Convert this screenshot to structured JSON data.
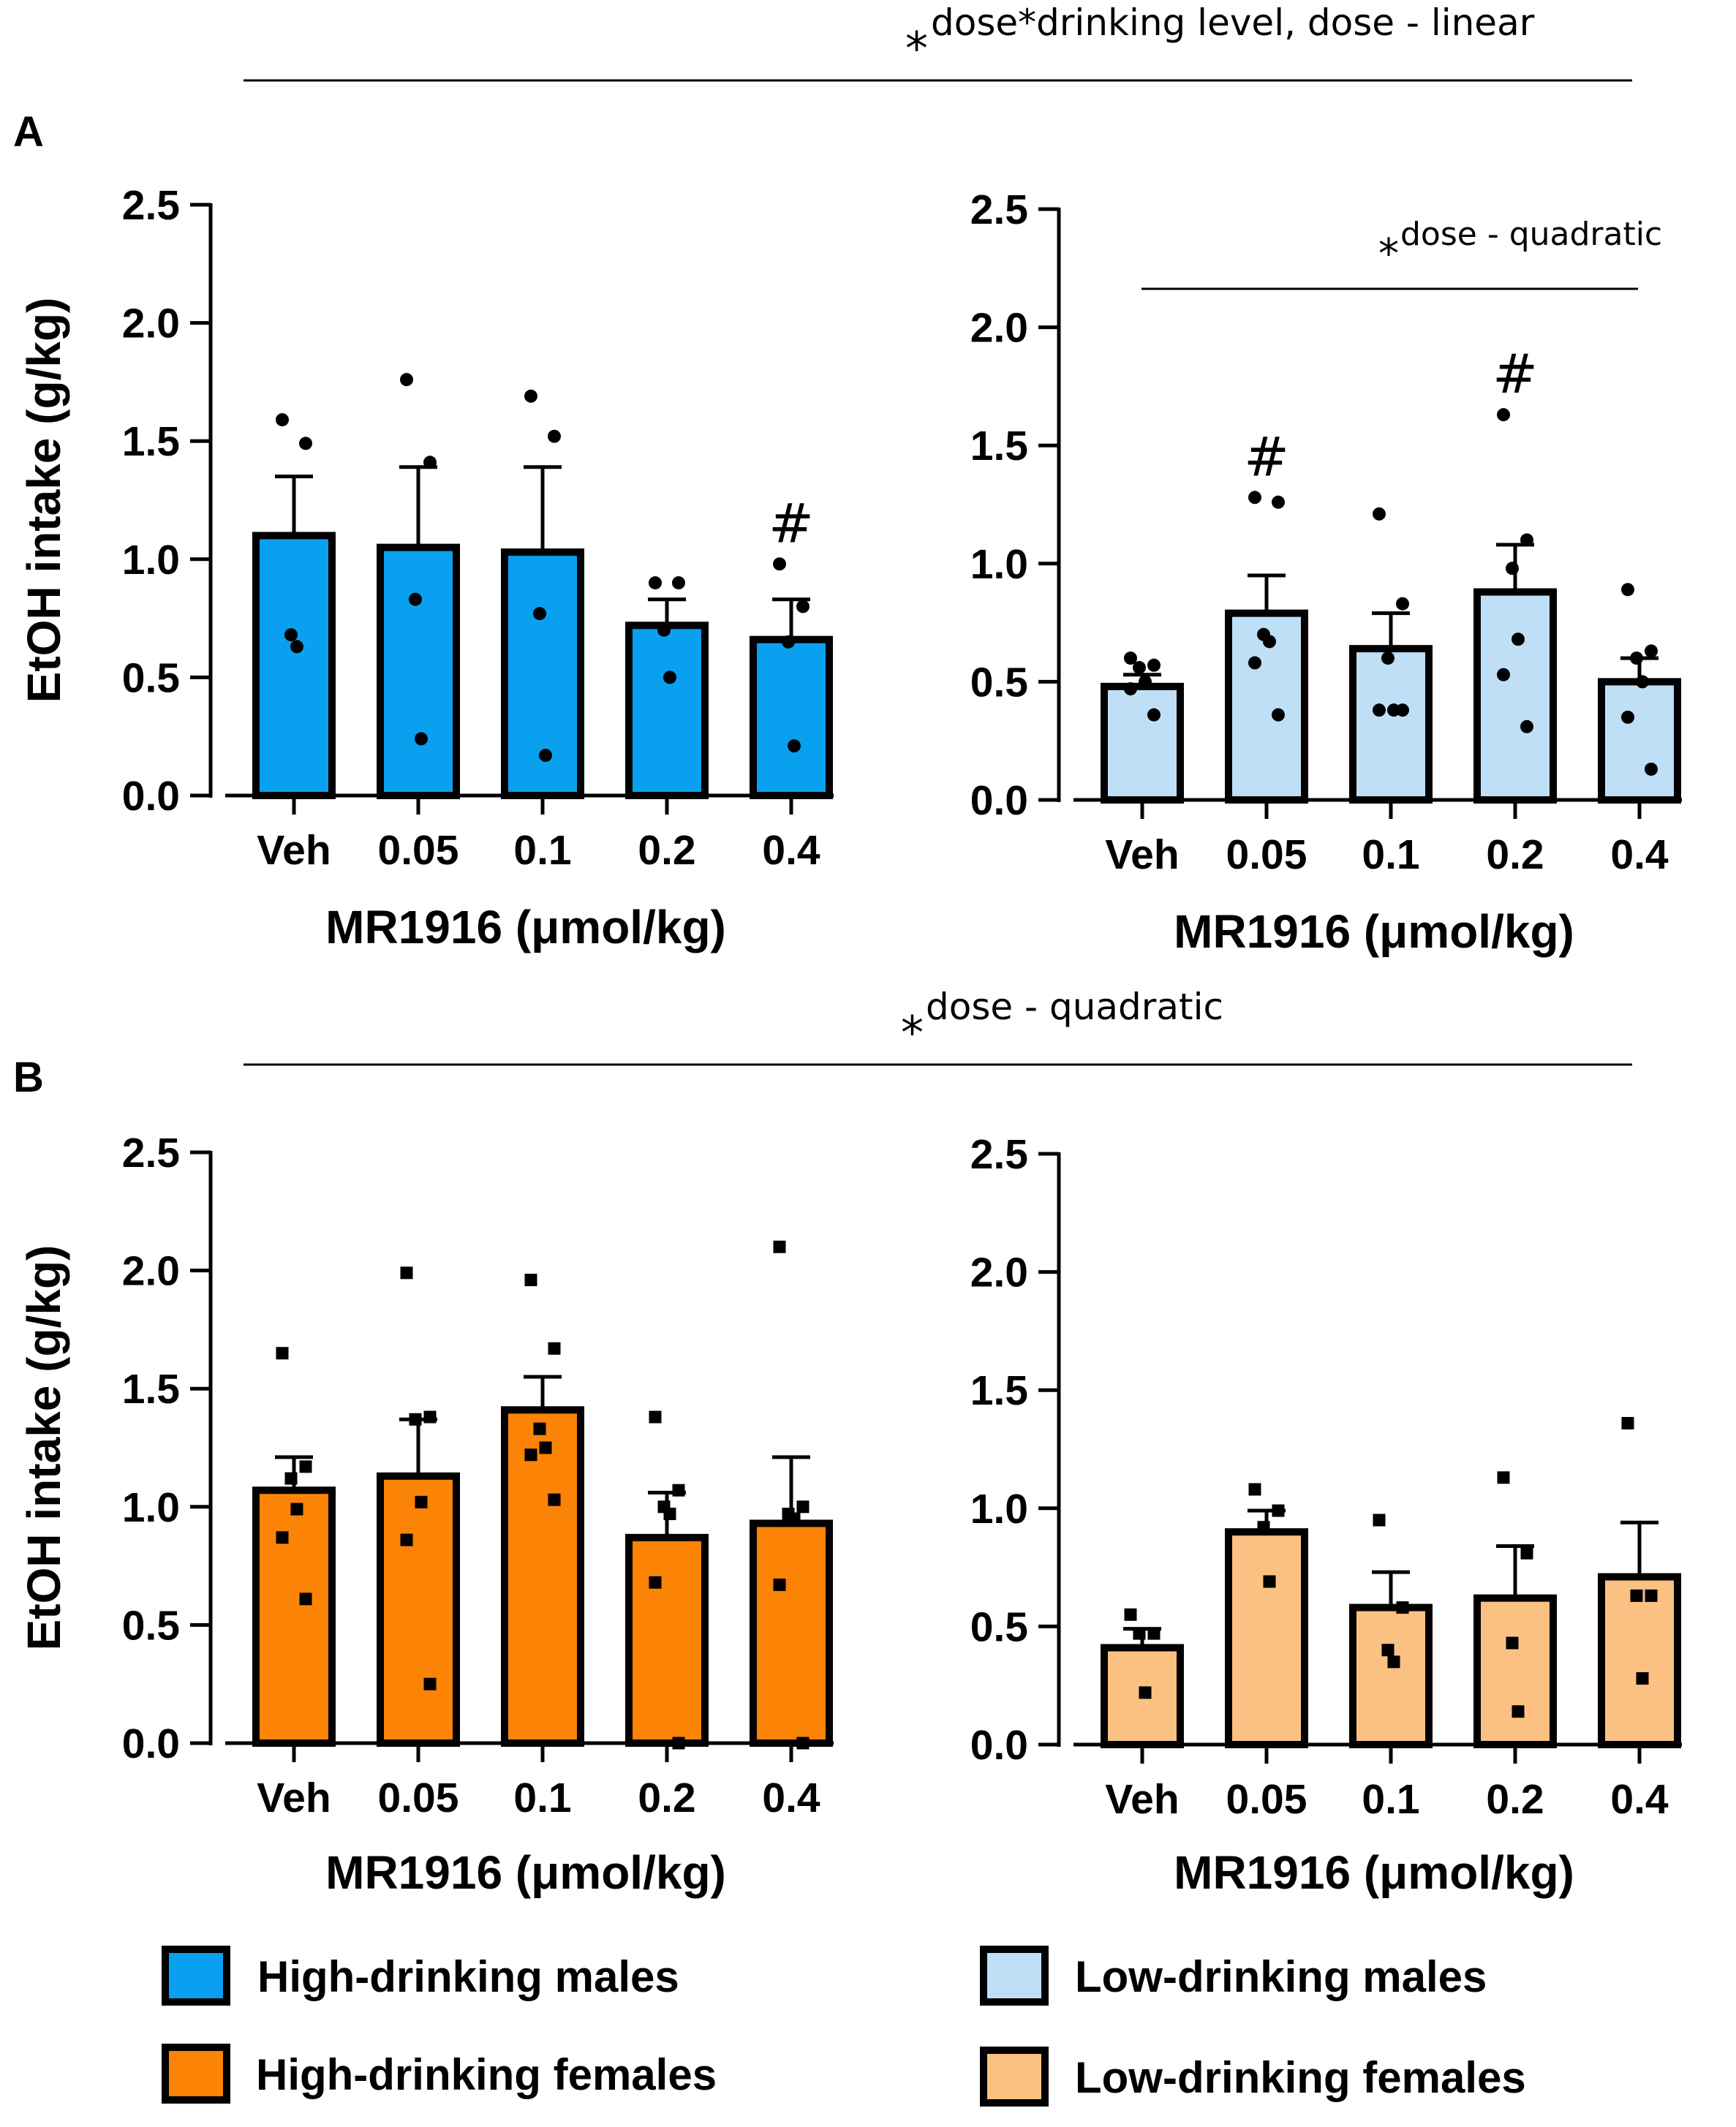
{
  "figure": {
    "panel_labels": [
      "A",
      "B"
    ],
    "top_annotation_A": "dose*drinking level, dose - linear",
    "top_annotation_B": "dose - quadratic",
    "inner_annotation_A_right": "dose - quadratic",
    "star": "*"
  },
  "legend": [
    {
      "label": "High-drinking males",
      "color": "#0aa0f0"
    },
    {
      "label": "Low-drinking males",
      "color": "#bfdff7"
    },
    {
      "label": "High-drinking females",
      "color": "#fb8305"
    },
    {
      "label": "Low-drinking females",
      "color": "#fbc183"
    }
  ],
  "chart_data": [
    {
      "id": "A-left",
      "type": "bar",
      "title": "",
      "xlabel": "MR1916 (μmol/kg)",
      "ylabel": "EtOH intake (g/kg)",
      "ylim": [
        0,
        2.5
      ],
      "yticks": [
        "0.0",
        "0.5",
        "1.0",
        "1.5",
        "2.0",
        "2.5"
      ],
      "categories": [
        "Veh",
        "0.05",
        "0.1",
        "0.2",
        "0.4"
      ],
      "color": "#0aa0f0",
      "marker": "circle",
      "values": [
        1.1,
        1.05,
        1.03,
        0.72,
        0.66
      ],
      "errors": [
        0.25,
        0.34,
        0.36,
        0.11,
        0.17
      ],
      "points": [
        [
          1.59,
          1.49,
          0.68,
          0.63
        ],
        [
          1.76,
          1.41,
          0.83,
          0.24
        ],
        [
          1.69,
          1.52,
          0.77,
          0.17
        ],
        [
          0.9,
          0.9,
          0.7,
          0.5
        ],
        [
          0.98,
          0.8,
          0.65,
          0.21
        ]
      ],
      "markers": [
        "",
        "",
        "",
        "",
        "#"
      ]
    },
    {
      "id": "A-right",
      "type": "bar",
      "title": "",
      "xlabel": "MR1916 (μmol/kg)",
      "ylabel": "",
      "ylim": [
        0,
        2.5
      ],
      "yticks": [
        "0.0",
        "0.5",
        "1.0",
        "1.5",
        "2.0",
        "2.5"
      ],
      "categories": [
        "Veh",
        "0.05",
        "0.1",
        "0.2",
        "0.4"
      ],
      "color": "#bfdff7",
      "marker": "circle",
      "values": [
        0.48,
        0.79,
        0.64,
        0.88,
        0.5
      ],
      "errors": [
        0.05,
        0.16,
        0.15,
        0.2,
        0.1
      ],
      "points": [
        [
          0.6,
          0.57,
          0.56,
          0.5,
          0.47,
          0.36
        ],
        [
          1.28,
          1.26,
          0.7,
          0.67,
          0.58,
          0.36
        ],
        [
          1.21,
          0.83,
          0.6,
          0.38,
          0.38,
          0.38
        ],
        [
          1.63,
          1.1,
          0.98,
          0.68,
          0.53,
          0.31
        ],
        [
          0.89,
          0.63,
          0.6,
          0.5,
          0.35,
          0.13
        ]
      ],
      "markers": [
        "",
        "#",
        "",
        "#",
        ""
      ]
    },
    {
      "id": "B-left",
      "type": "bar",
      "title": "",
      "xlabel": "MR1916 (μmol/kg)",
      "ylabel": "EtOH intake (g/kg)",
      "ylim": [
        0,
        2.5
      ],
      "yticks": [
        "0.0",
        "0.5",
        "1.0",
        "1.5",
        "2.0",
        "2.5"
      ],
      "categories": [
        "Veh",
        "0.05",
        "0.1",
        "0.2",
        "0.4"
      ],
      "color": "#fb8305",
      "marker": "square",
      "values": [
        1.07,
        1.13,
        1.41,
        0.87,
        0.93
      ],
      "errors": [
        0.14,
        0.24,
        0.14,
        0.19,
        0.28
      ],
      "points": [
        [
          1.65,
          1.17,
          1.12,
          0.99,
          0.87,
          0.61
        ],
        [
          1.99,
          1.38,
          1.37,
          1.02,
          0.86,
          0.25
        ],
        [
          1.96,
          1.67,
          1.33,
          1.25,
          1.22,
          1.03
        ],
        [
          1.38,
          1.07,
          1.0,
          0.97,
          0.68,
          0.0
        ],
        [
          2.1,
          1.0,
          0.97,
          0.95,
          0.67,
          0.0
        ]
      ],
      "markers": [
        "",
        "",
        "",
        "",
        ""
      ]
    },
    {
      "id": "B-right",
      "type": "bar",
      "title": "",
      "xlabel": "MR1916 (μmol/kg)",
      "ylabel": "",
      "ylim": [
        0,
        2.5
      ],
      "yticks": [
        "0.0",
        "0.5",
        "1.0",
        "1.5",
        "2.0",
        "2.5"
      ],
      "categories": [
        "Veh",
        "0.05",
        "0.1",
        "0.2",
        "0.4"
      ],
      "color": "#fbc183",
      "marker": "square",
      "values": [
        0.41,
        0.9,
        0.58,
        0.62,
        0.71
      ],
      "errors": [
        0.08,
        0.09,
        0.15,
        0.22,
        0.23
      ],
      "points": [
        [
          0.55,
          0.47,
          0.47,
          0.22
        ],
        [
          1.08,
          0.99,
          0.92,
          0.69
        ],
        [
          0.95,
          0.58,
          0.4,
          0.35
        ],
        [
          1.13,
          0.81,
          0.43,
          0.14
        ],
        [
          1.36,
          0.63,
          0.63,
          0.28
        ]
      ],
      "markers": [
        "",
        "",
        "",
        "",
        ""
      ]
    }
  ]
}
